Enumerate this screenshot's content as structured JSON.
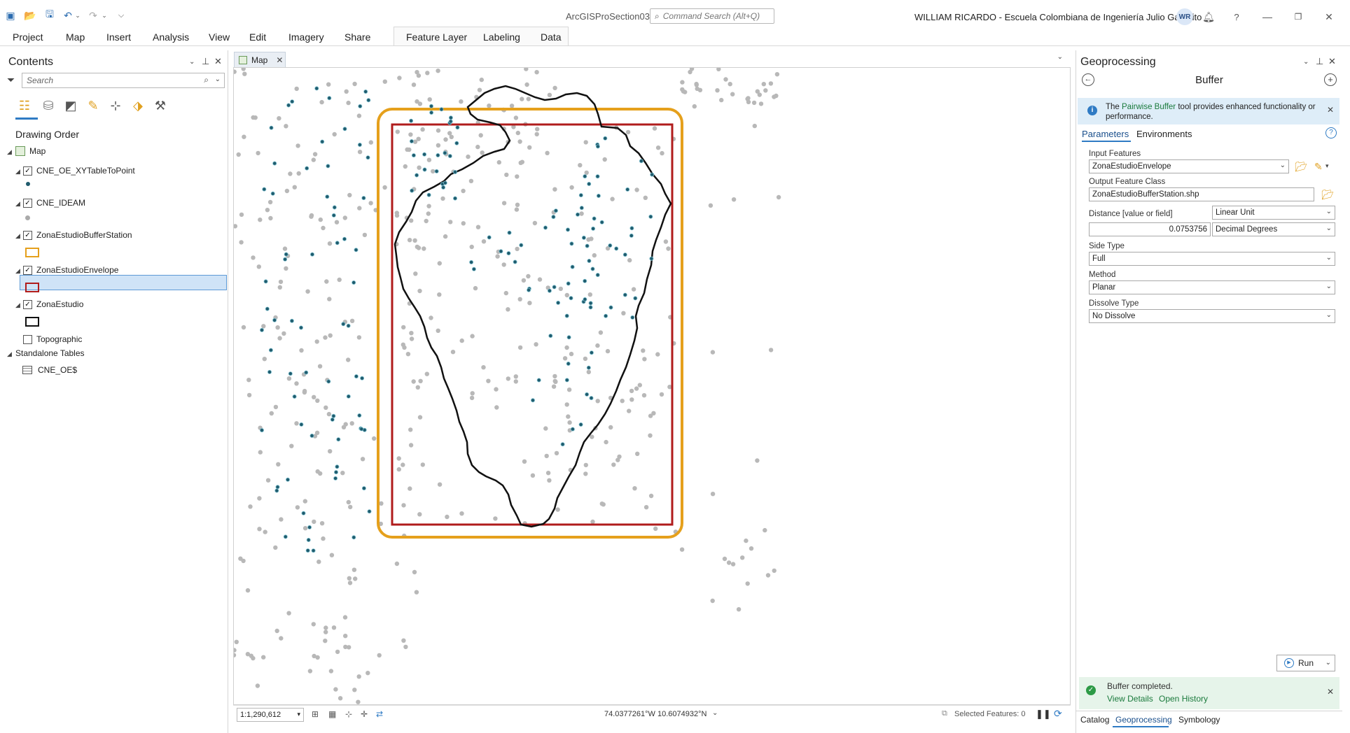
{
  "app": {
    "title": "ArcGISProSection03",
    "command_search_placeholder": "Command Search (Alt+Q)",
    "user": "WILLIAM RICARDO  - Escuela Colombiana de Ingeniería Julio Garavito",
    "avatar_initials": "WR"
  },
  "ribbon": {
    "tabs": [
      "Project",
      "Map",
      "Insert",
      "Analysis",
      "View",
      "Edit",
      "Imagery",
      "Share",
      "Feature Layer",
      "Labeling",
      "Data"
    ]
  },
  "contents": {
    "title": "Contents",
    "search_placeholder": "Search",
    "section": "Drawing Order",
    "map_label": "Map",
    "layers": [
      {
        "name": "CNE_OE_XYTableToPoint",
        "checked": true
      },
      {
        "name": "CNE_IDEAM",
        "checked": true
      },
      {
        "name": "ZonaEstudioBufferStation",
        "checked": true,
        "swatch": "#e5a01c"
      },
      {
        "name": "ZonaEstudioEnvelope",
        "checked": true,
        "swatch": "#b01c1c"
      },
      {
        "name": "ZonaEstudio",
        "checked": true,
        "swatch": "#111111"
      },
      {
        "name": "Topographic",
        "checked": false
      }
    ],
    "standalone_header": "Standalone Tables",
    "standalone_table": "CNE_OE$"
  },
  "map": {
    "tab_label": "Map",
    "scale": "1:1,290,612",
    "coordinates": "74.0377261°W 10.6074932°N",
    "selected_features": "Selected Features: 0"
  },
  "geoprocessing": {
    "title": "Geoprocessing",
    "tool": "Buffer",
    "info_pre": "The ",
    "info_link": "Pairwise Buffer",
    "info_post": " tool provides enhanced functionality or performance.",
    "tabs": [
      "Parameters",
      "Environments"
    ],
    "input_features_label": "Input Features",
    "input_features": "ZonaEstudioEnvelope",
    "output_label": "Output Feature Class",
    "output": "ZonaEstudioBufferStation.shp",
    "distance_label": "Distance [value or field]",
    "distance_mode": "Linear Unit",
    "distance_value": "0.0753756",
    "distance_unit": "Decimal Degrees",
    "side_type_label": "Side Type",
    "side_type": "Full",
    "method_label": "Method",
    "method": "Planar",
    "dissolve_label": "Dissolve Type",
    "dissolve": "No Dissolve",
    "run_label": "Run",
    "done_message": "Buffer completed.",
    "view_details": "View Details",
    "open_history": "Open History",
    "bottom_tabs": [
      "Catalog",
      "Geoprocessing",
      "Symbology"
    ]
  }
}
